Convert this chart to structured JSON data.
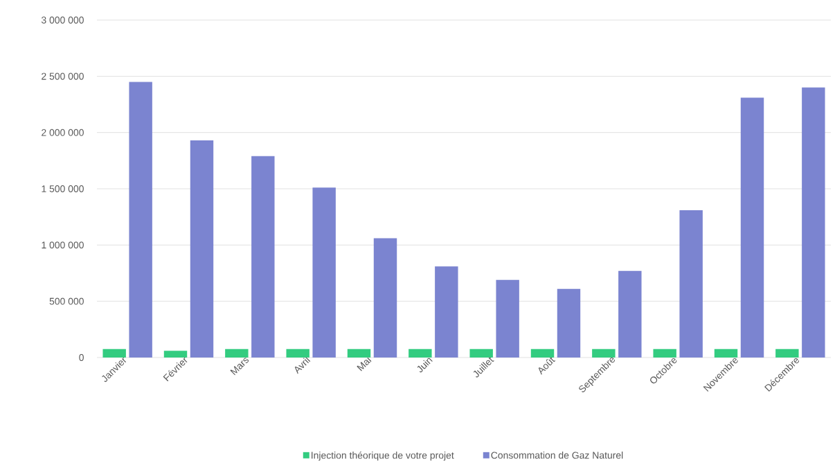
{
  "chart_data": {
    "type": "bar",
    "categories": [
      "Janvier",
      "Février",
      "Mars",
      "Avril",
      "Mai",
      "Juin",
      "Juillet",
      "Août",
      "Septembre",
      "Octobre",
      "Novembre",
      "Décembre"
    ],
    "series": [
      {
        "name": "Injection théorique de votre projet",
        "color": "#33cc80",
        "values": [
          75000,
          60000,
          75000,
          75000,
          75000,
          75000,
          75000,
          75000,
          75000,
          75000,
          75000,
          75000
        ]
      },
      {
        "name": "Consommation de Gaz Naturel",
        "color": "#7b84d0",
        "values": [
          2450000,
          1930000,
          1790000,
          1510000,
          1060000,
          810000,
          690000,
          610000,
          770000,
          1310000,
          2310000,
          2400000
        ]
      }
    ],
    "ylim": [
      0,
      3000000
    ],
    "yticks": [
      0,
      {
        "value": 500000,
        "label": "500 000"
      },
      {
        "value": 1000000,
        "label": "1 000 000"
      },
      {
        "value": 1500000,
        "label": "1 500 000"
      },
      {
        "value": 2000000,
        "label": "2 000 000"
      },
      {
        "value": 2500000,
        "label": "2 500 000"
      },
      {
        "value": 3000000,
        "label": "3 000 000"
      }
    ],
    "grid": "y",
    "legend": "bottom"
  }
}
